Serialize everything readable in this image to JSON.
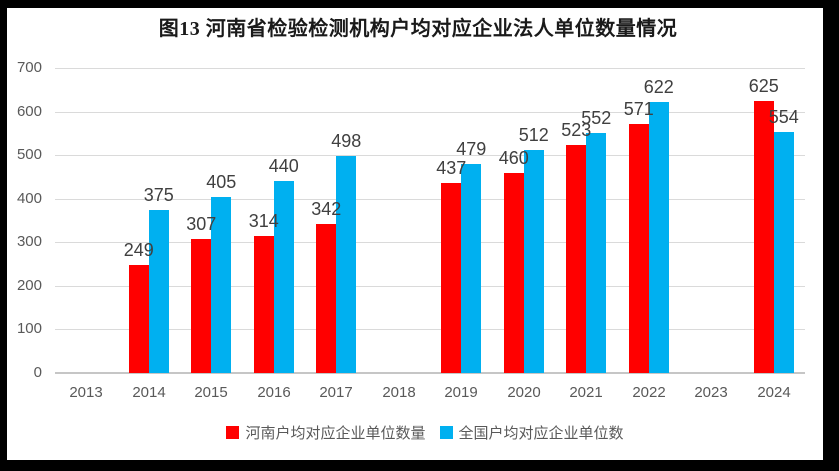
{
  "title": "图13 河南省检验检测机构户均对应企业法人单位数量情况",
  "colors": {
    "henan_series": "#FF0000",
    "national_series": "#00B0F0",
    "frame_border": "#000000"
  },
  "chart_data": {
    "type": "bar",
    "title": "图13 河南省检验检测机构户均对应企业法人单位数量情况",
    "categories": [
      "2013",
      "2014",
      "2015",
      "2016",
      "2017",
      "2018",
      "2019",
      "2020",
      "2021",
      "2022",
      "2023",
      "2024"
    ],
    "series": [
      {
        "name": "河南户均对应企业单位数量",
        "color": "#FF0000",
        "values": [
          null,
          249,
          307,
          314,
          342,
          null,
          437,
          460,
          523,
          571,
          null,
          625
        ]
      },
      {
        "name": "全国户均对应企业单位数",
        "color": "#00B0F0",
        "values": [
          null,
          375,
          405,
          440,
          498,
          null,
          479,
          512,
          552,
          622,
          null,
          554
        ]
      }
    ],
    "xlabel": "",
    "ylabel": "",
    "ylim": [
      0,
      700
    ],
    "yticks": [
      0,
      100,
      200,
      300,
      400,
      500,
      600,
      700
    ],
    "grid": true,
    "data_labels": true,
    "legend_position": "bottom"
  }
}
